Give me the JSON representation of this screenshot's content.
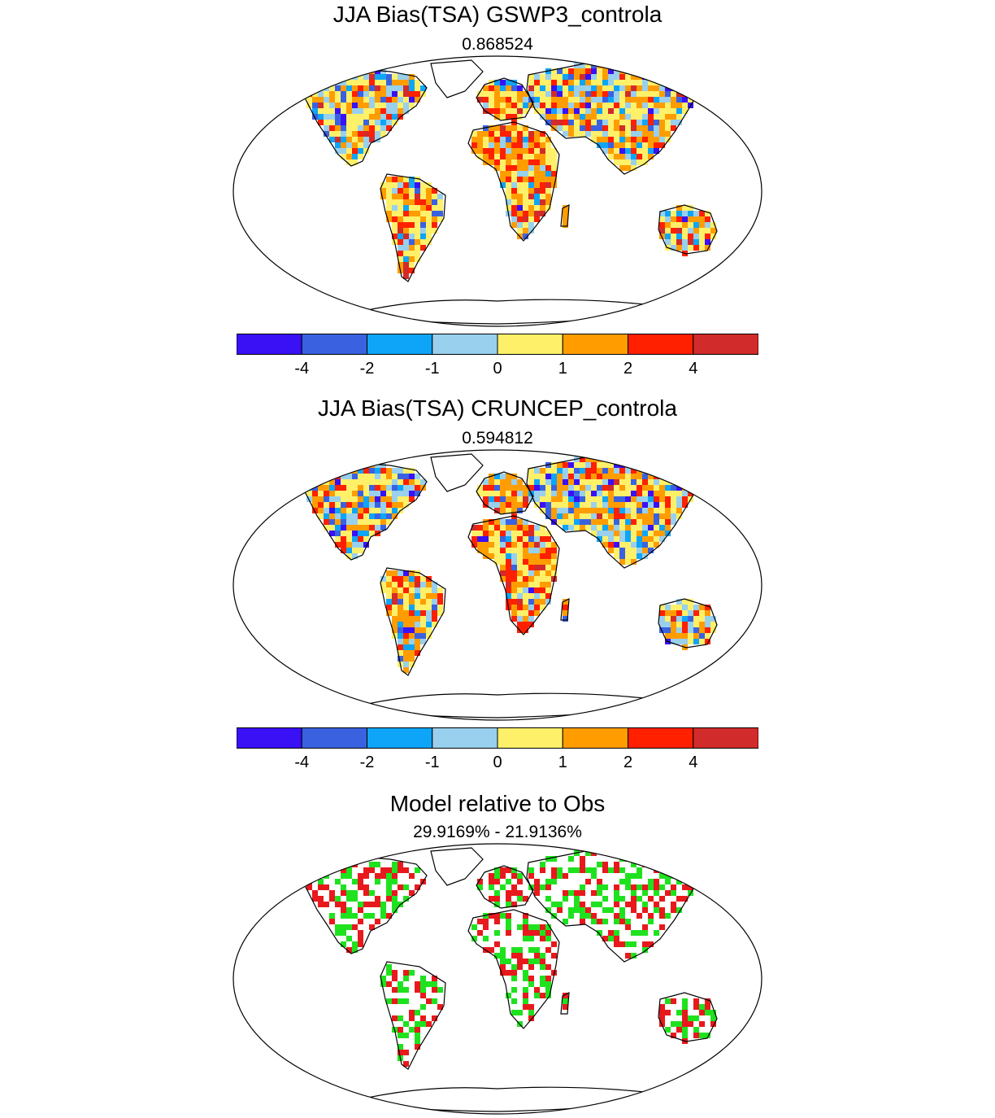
{
  "panels": [
    {
      "id": "gswp3",
      "title": "JJA Bias(TSA) GSWP3_controla",
      "subtitle": "0.868524"
    },
    {
      "id": "cruncep",
      "title": "JJA Bias(TSA) CRUNCEP_controla",
      "subtitle": "0.594812"
    },
    {
      "id": "relative",
      "title": "Model relative to Obs",
      "subtitle": "29.9169% - 21.9136%"
    }
  ],
  "colorbar": {
    "colors": [
      "#3a10f5",
      "#3a62e0",
      "#0ea5f8",
      "#98d0ee",
      "#fff06a",
      "#ff9d00",
      "#ff2000",
      "#d22b2b"
    ],
    "labels": [
      "-4",
      "-2",
      "-1",
      "0",
      "1",
      "2",
      "4"
    ]
  },
  "relative_colors": {
    "better": "#1fe21f",
    "worse": "#e8191c"
  }
}
